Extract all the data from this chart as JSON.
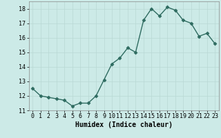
{
  "x": [
    0,
    1,
    2,
    3,
    4,
    5,
    6,
    7,
    8,
    9,
    10,
    11,
    12,
    13,
    14,
    15,
    16,
    17,
    18,
    19,
    20,
    21,
    22,
    23
  ],
  "y": [
    12.5,
    12.0,
    11.9,
    11.8,
    11.7,
    11.3,
    11.5,
    11.5,
    12.0,
    13.1,
    14.2,
    14.6,
    15.3,
    15.0,
    17.2,
    18.0,
    17.5,
    18.1,
    17.9,
    17.2,
    17.0,
    16.1,
    16.3,
    15.6
  ],
  "xlabel": "Humidex (Indice chaleur)",
  "ylim": [
    11,
    18.5
  ],
  "xlim": [
    -0.5,
    23.5
  ],
  "yticks": [
    11,
    12,
    13,
    14,
    15,
    16,
    17,
    18
  ],
  "xticks": [
    0,
    1,
    2,
    3,
    4,
    5,
    6,
    7,
    8,
    9,
    10,
    11,
    12,
    13,
    14,
    15,
    16,
    17,
    18,
    19,
    20,
    21,
    22,
    23
  ],
  "xtick_labels": [
    "0",
    "1",
    "2",
    "3",
    "4",
    "5",
    "6",
    "7",
    "8",
    "9",
    "10",
    "11",
    "12",
    "13",
    "14",
    "15",
    "16",
    "17",
    "18",
    "19",
    "20",
    "21",
    "22",
    "23"
  ],
  "line_color": "#2e6b60",
  "marker": "D",
  "marker_size": 2.5,
  "bg_color": "#cceae7",
  "grid_color": "#b8d8d4",
  "xlabel_fontsize": 7,
  "tick_fontsize": 6,
  "line_width": 1.0
}
